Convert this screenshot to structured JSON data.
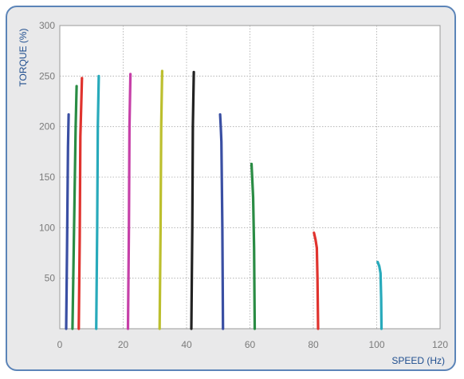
{
  "chart_data": {
    "type": "line",
    "xlabel": "SPEED (Hz)",
    "ylabel": "TORQUE (%)",
    "xlim": [
      0,
      120
    ],
    "ylim": [
      0,
      300
    ],
    "xticks": [
      0,
      20,
      40,
      60,
      80,
      100,
      120
    ],
    "yticks": [
      50,
      100,
      150,
      200,
      250,
      300
    ],
    "grid": true,
    "series": [
      {
        "color": "#3a4fa3",
        "x": [
          2.0,
          2.3,
          2.6,
          2.8
        ],
        "y": [
          0,
          80,
          180,
          212
        ]
      },
      {
        "color": "#2a8c44",
        "x": [
          4.0,
          4.5,
          5.0,
          5.3
        ],
        "y": [
          0,
          100,
          200,
          240
        ]
      },
      {
        "color": "#e0332e",
        "x": [
          6.0,
          6.3,
          6.5,
          7.0
        ],
        "y": [
          0,
          90,
          190,
          248
        ]
      },
      {
        "color": "#28aabb",
        "x": [
          11.5,
          11.8,
          12.0,
          12.3
        ],
        "y": [
          0,
          100,
          200,
          250
        ]
      },
      {
        "color": "#c640a8",
        "x": [
          21.5,
          21.8,
          22.0,
          22.3
        ],
        "y": [
          0,
          100,
          200,
          252
        ]
      },
      {
        "color": "#bcbf2e",
        "x": [
          31.5,
          31.8,
          32.0,
          32.3
        ],
        "y": [
          0,
          100,
          200,
          255
        ]
      },
      {
        "color": "#222222",
        "x": [
          41.5,
          41.8,
          42.0,
          42.3
        ],
        "y": [
          0,
          100,
          200,
          254
        ]
      },
      {
        "color": "#3a4fa3",
        "x": [
          51.5,
          51.3,
          51.0,
          50.8,
          50.6
        ],
        "y": [
          0,
          100,
          185,
          200,
          212
        ]
      },
      {
        "color": "#2a8c44",
        "x": [
          61.5,
          61.3,
          61.0,
          60.7,
          60.5
        ],
        "y": [
          0,
          80,
          130,
          150,
          163
        ]
      },
      {
        "color": "#e0332e",
        "x": [
          81.5,
          81.3,
          81.1,
          80.7,
          80.2
        ],
        "y": [
          0,
          50,
          80,
          88,
          95
        ]
      },
      {
        "color": "#28aabb",
        "x": [
          101.5,
          101.4,
          101.2,
          100.8,
          100.3
        ],
        "y": [
          0,
          30,
          55,
          62,
          66
        ]
      }
    ]
  }
}
